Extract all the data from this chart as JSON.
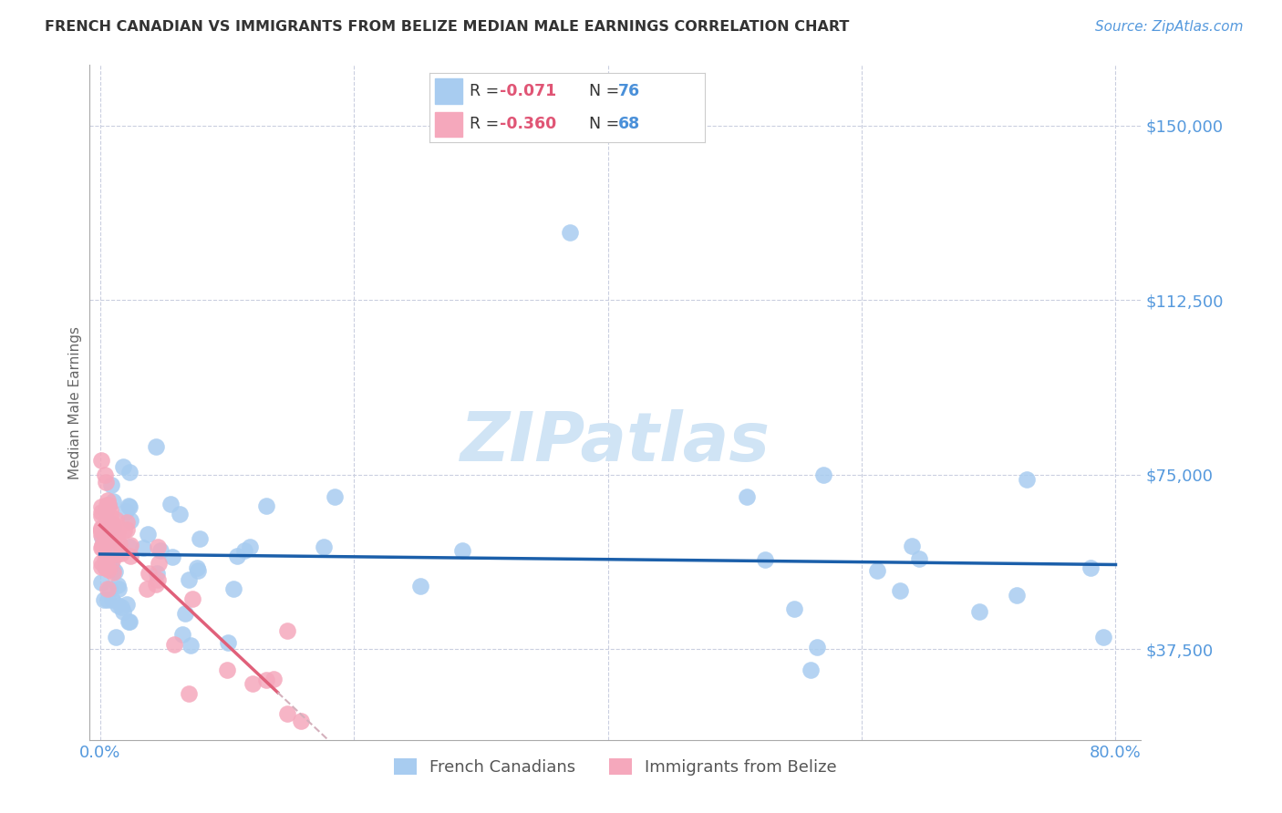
{
  "title": "FRENCH CANADIAN VS IMMIGRANTS FROM BELIZE MEDIAN MALE EARNINGS CORRELATION CHART",
  "source": "Source: ZipAtlas.com",
  "ylabel": "Median Male Earnings",
  "ytick_labels": [
    "$37,500",
    "$75,000",
    "$112,500",
    "$150,000"
  ],
  "ytick_values": [
    37500,
    75000,
    112500,
    150000
  ],
  "ymin": 18000,
  "ymax": 163000,
  "xmin": -0.008,
  "xmax": 0.82,
  "legend_blue_r": "-0.071",
  "legend_blue_n": "76",
  "legend_pink_r": "-0.360",
  "legend_pink_n": "68",
  "legend_label_blue": "French Canadians",
  "legend_label_pink": "Immigrants from Belize",
  "blue_color": "#A8CCF0",
  "pink_color": "#F5A8BC",
  "trend_blue_color": "#1B5FAA",
  "trend_pink_solid_color": "#E0607A",
  "trend_pink_dashed_color": "#D4B0BC",
  "watermark_color": "#D0E4F5",
  "grid_color": "#CACFE0",
  "axis_label_color": "#5599DD",
  "title_color": "#333333",
  "source_color": "#5599DD",
  "ylabel_color": "#666666"
}
